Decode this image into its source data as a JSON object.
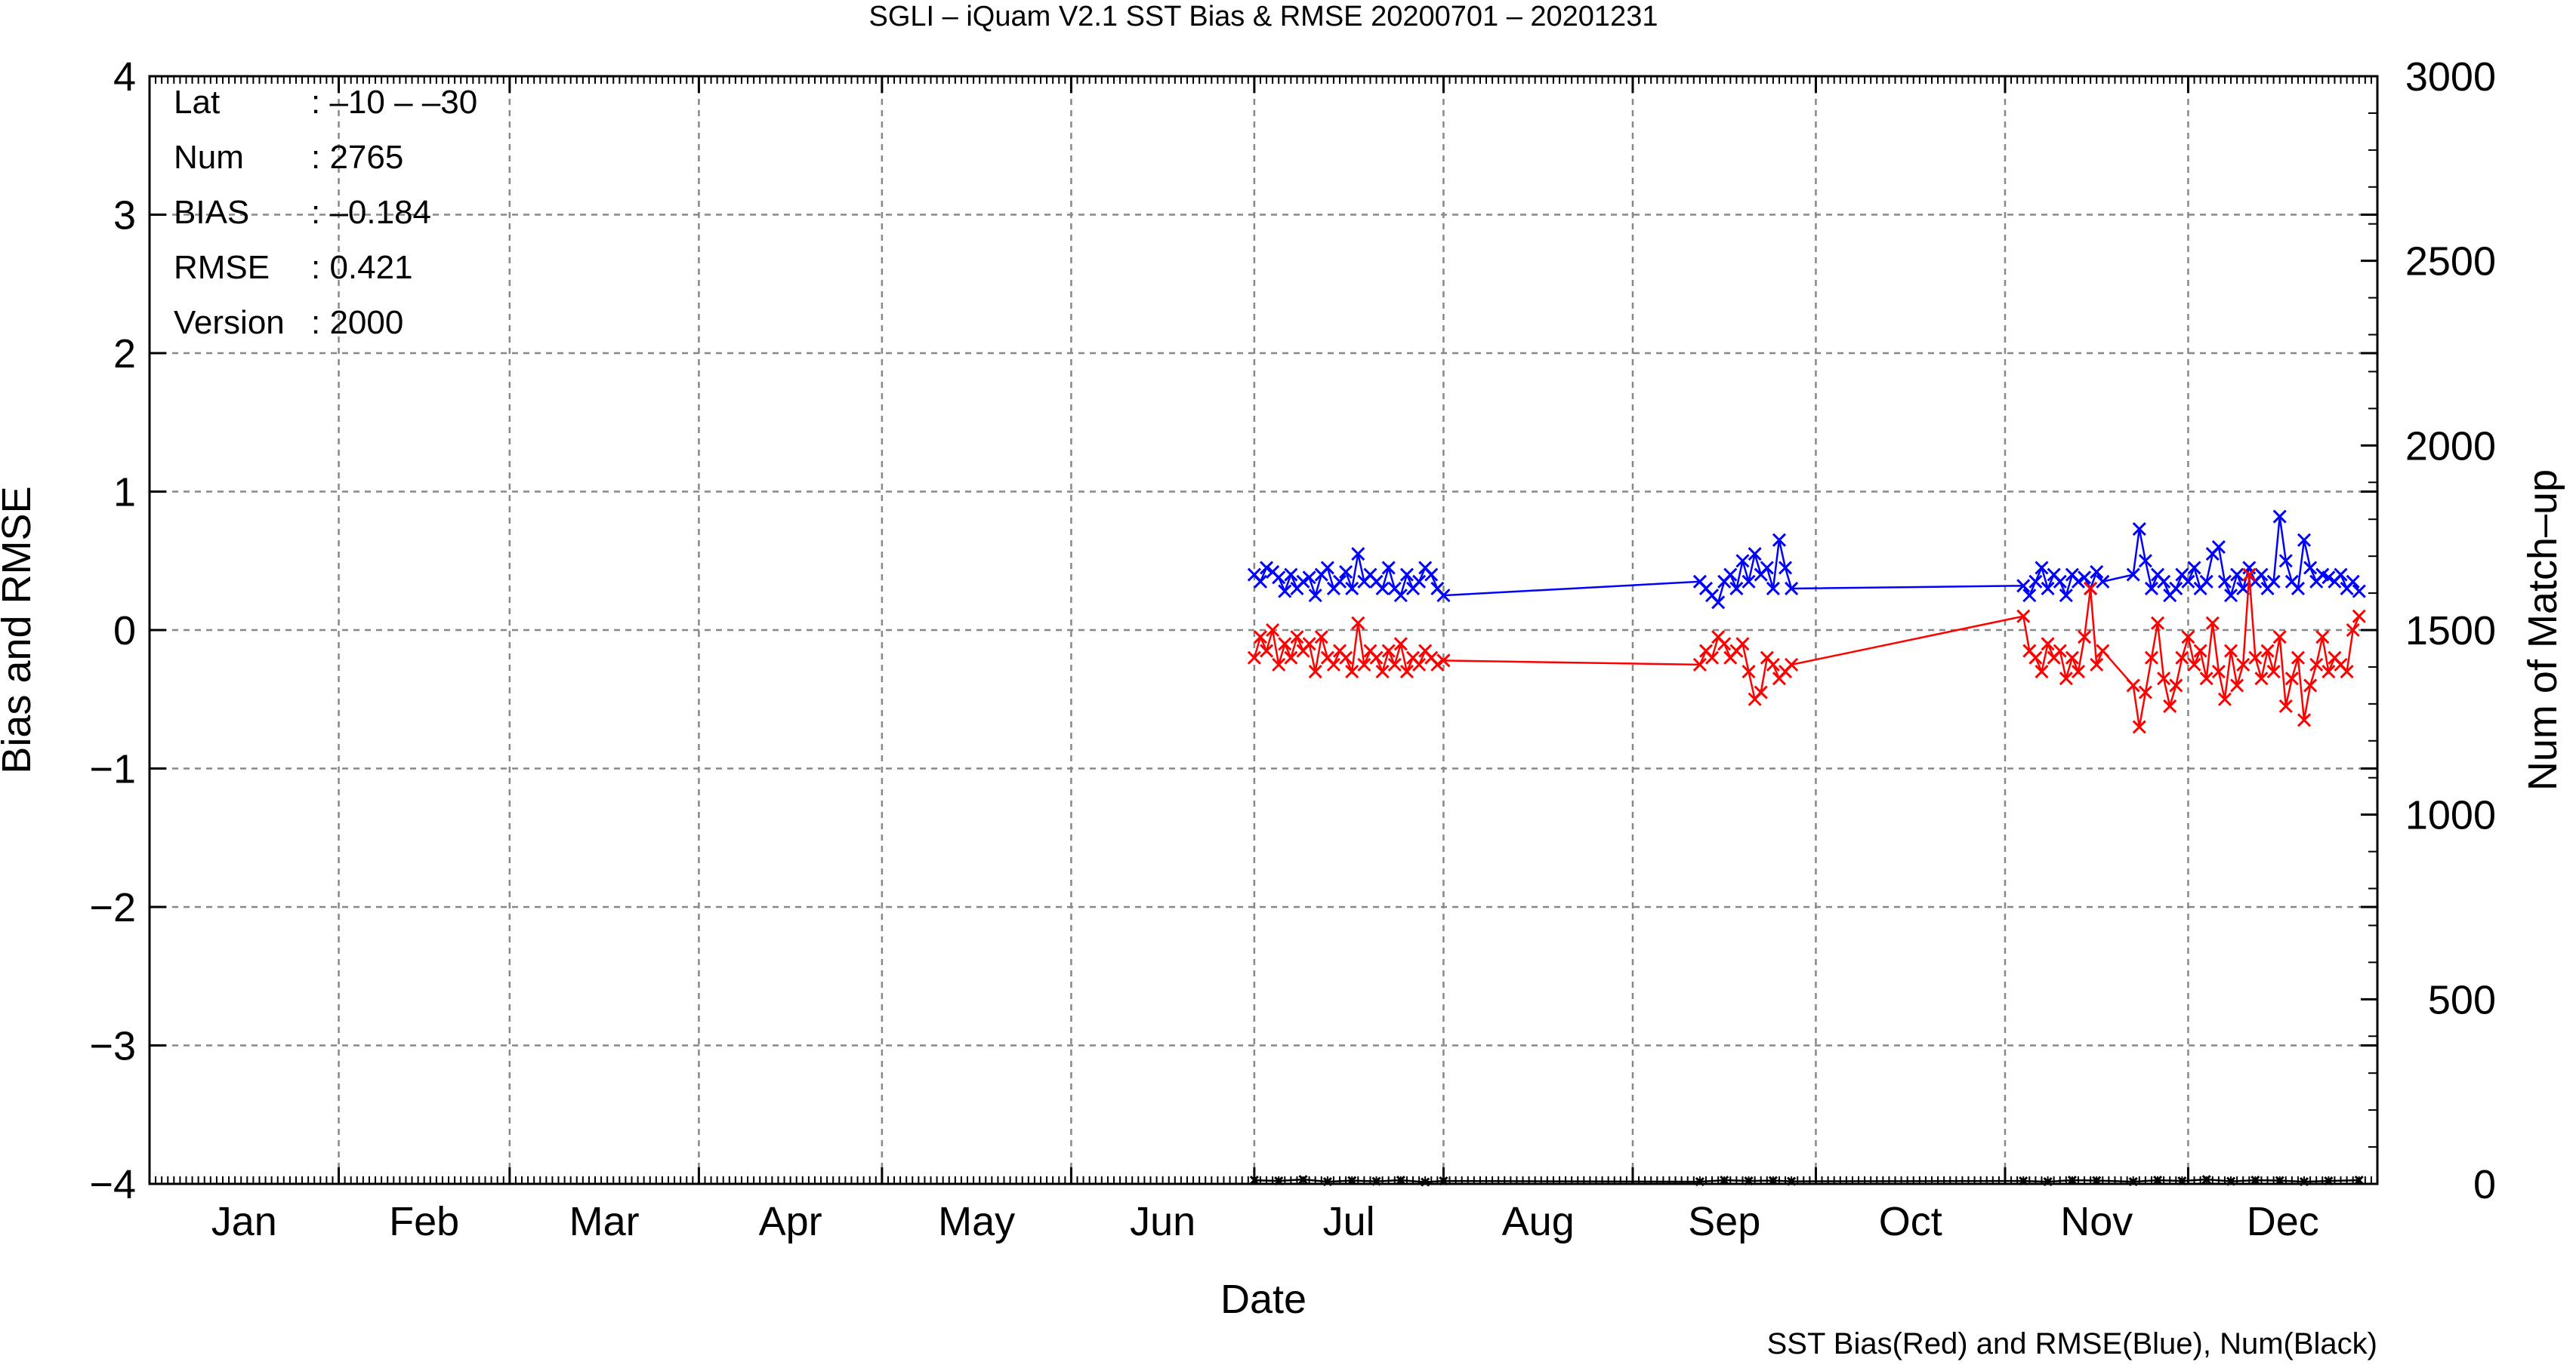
{
  "chart_data": {
    "type": "line",
    "title": "SGLI – iQuam V2.1 SST Bias & RMSE 20200701 – 20201231",
    "xlabel": "Date",
    "ylabel": "Bias and RMSE",
    "ylabel_right": "Num of Match–up",
    "footnote": "SST Bias(Red) and RMSE(Blue), Num(Black)",
    "months": [
      "Jan",
      "Feb",
      "Mar",
      "Apr",
      "May",
      "Jun",
      "Jul",
      "Aug",
      "Sep",
      "Oct",
      "Nov",
      "Dec"
    ],
    "ylim": [
      -4,
      4
    ],
    "ylim_right": [
      0,
      3000
    ],
    "yticks": [
      4,
      3,
      2,
      1,
      0,
      -1,
      -2,
      -3,
      -4
    ],
    "yticks_right": [
      3000,
      2500,
      2000,
      1500,
      1000,
      500,
      0
    ],
    "grid": true,
    "info": [
      {
        "key": "Lat",
        "value": ": –10 – –30"
      },
      {
        "key": "Num",
        "value": ": 2765"
      },
      {
        "key": "BIAS",
        "value": ": –0.184"
      },
      {
        "key": "RMSE",
        "value": ": 0.421"
      },
      {
        "key": "Version",
        "value": ": 2000"
      }
    ],
    "series": [
      {
        "name": "RMSE",
        "color": "#0000ff",
        "axis": "left",
        "x": [
          182,
          183,
          184,
          185,
          186,
          187,
          188,
          189,
          190,
          191,
          192,
          193,
          194,
          195,
          196,
          197,
          198,
          199,
          200,
          201,
          202,
          203,
          204,
          205,
          206,
          207,
          208,
          209,
          210,
          211,
          212,
          213,
          255,
          256,
          257,
          258,
          259,
          260,
          261,
          262,
          263,
          264,
          265,
          266,
          267,
          268,
          269,
          270,
          308,
          309,
          310,
          311,
          312,
          313,
          314,
          315,
          316,
          317,
          318,
          319,
          320,
          321,
          326,
          327,
          328,
          329,
          330,
          331,
          332,
          333,
          334,
          335,
          336,
          337,
          338,
          339,
          340,
          341,
          342,
          343,
          344,
          345,
          346,
          347,
          348,
          349,
          350,
          351,
          352,
          353,
          354,
          355,
          356,
          357,
          358,
          359,
          360,
          361,
          362,
          363
        ],
        "y": [
          0.4,
          0.35,
          0.45,
          0.42,
          0.38,
          0.28,
          0.4,
          0.3,
          0.35,
          0.38,
          0.25,
          0.4,
          0.45,
          0.3,
          0.35,
          0.42,
          0.3,
          0.55,
          0.35,
          0.4,
          0.35,
          0.3,
          0.45,
          0.3,
          0.25,
          0.4,
          0.3,
          0.35,
          0.45,
          0.4,
          0.3,
          0.25,
          0.35,
          0.3,
          0.25,
          0.2,
          0.35,
          0.4,
          0.3,
          0.5,
          0.35,
          0.55,
          0.4,
          0.45,
          0.3,
          0.65,
          0.45,
          0.3,
          0.32,
          0.25,
          0.35,
          0.45,
          0.3,
          0.4,
          0.35,
          0.25,
          0.4,
          0.35,
          0.38,
          0.3,
          0.42,
          0.35,
          0.4,
          0.73,
          0.5,
          0.3,
          0.4,
          0.35,
          0.25,
          0.3,
          0.4,
          0.35,
          0.45,
          0.3,
          0.35,
          0.55,
          0.6,
          0.35,
          0.25,
          0.4,
          0.3,
          0.45,
          0.35,
          0.4,
          0.3,
          0.35,
          0.82,
          0.5,
          0.35,
          0.3,
          0.65,
          0.45,
          0.35,
          0.4,
          0.38,
          0.35,
          0.4,
          0.3,
          0.35,
          0.28
        ]
      },
      {
        "name": "BIAS",
        "color": "#ff0000",
        "axis": "left",
        "x": [
          182,
          183,
          184,
          185,
          186,
          187,
          188,
          189,
          190,
          191,
          192,
          193,
          194,
          195,
          196,
          197,
          198,
          199,
          200,
          201,
          202,
          203,
          204,
          205,
          206,
          207,
          208,
          209,
          210,
          211,
          212,
          213,
          255,
          256,
          257,
          258,
          259,
          260,
          261,
          262,
          263,
          264,
          265,
          266,
          267,
          268,
          269,
          270,
          308,
          309,
          310,
          311,
          312,
          313,
          314,
          315,
          316,
          317,
          318,
          319,
          320,
          321,
          326,
          327,
          328,
          329,
          330,
          331,
          332,
          333,
          334,
          335,
          336,
          337,
          338,
          339,
          340,
          341,
          342,
          343,
          344,
          345,
          346,
          347,
          348,
          349,
          350,
          351,
          352,
          353,
          354,
          355,
          356,
          357,
          358,
          359,
          360,
          361,
          362,
          363
        ],
        "y": [
          -0.2,
          -0.05,
          -0.15,
          0.0,
          -0.25,
          -0.1,
          -0.2,
          -0.05,
          -0.15,
          -0.1,
          -0.3,
          -0.05,
          -0.2,
          -0.25,
          -0.15,
          -0.2,
          -0.3,
          0.05,
          -0.25,
          -0.15,
          -0.2,
          -0.3,
          -0.15,
          -0.25,
          -0.1,
          -0.3,
          -0.2,
          -0.25,
          -0.15,
          -0.2,
          -0.25,
          -0.22,
          -0.25,
          -0.15,
          -0.2,
          -0.05,
          -0.1,
          -0.2,
          -0.15,
          -0.1,
          -0.3,
          -0.5,
          -0.45,
          -0.2,
          -0.25,
          -0.35,
          -0.3,
          -0.25,
          0.1,
          -0.15,
          -0.2,
          -0.3,
          -0.1,
          -0.2,
          -0.15,
          -0.35,
          -0.2,
          -0.3,
          -0.05,
          0.3,
          -0.25,
          -0.15,
          -0.4,
          -0.7,
          -0.45,
          -0.2,
          0.05,
          -0.35,
          -0.55,
          -0.4,
          -0.2,
          -0.05,
          -0.25,
          -0.15,
          -0.35,
          0.05,
          -0.3,
          -0.5,
          -0.15,
          -0.4,
          -0.25,
          0.4,
          -0.2,
          -0.35,
          -0.15,
          -0.3,
          -0.05,
          -0.55,
          -0.35,
          -0.2,
          -0.65,
          -0.4,
          -0.25,
          -0.05,
          -0.3,
          -0.2,
          -0.25,
          -0.3,
          0.0,
          0.1
        ]
      },
      {
        "name": "Num",
        "color": "#000000",
        "axis": "right",
        "x": [
          182,
          186,
          190,
          194,
          198,
          202,
          206,
          210,
          213,
          255,
          259,
          263,
          267,
          270,
          308,
          312,
          316,
          320,
          326,
          330,
          334,
          338,
          342,
          346,
          350,
          354,
          358,
          363
        ],
        "y": [
          10,
          8,
          12,
          6,
          9,
          7,
          10,
          5,
          8,
          6,
          10,
          8,
          9,
          7,
          8,
          6,
          10,
          9,
          6,
          10,
          8,
          12,
          7,
          10,
          9,
          6,
          8,
          10
        ]
      }
    ]
  }
}
